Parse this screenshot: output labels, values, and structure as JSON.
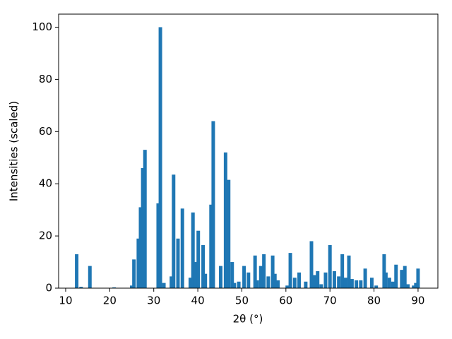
{
  "chart_data": {
    "type": "bar",
    "xlabel": "2θ (°)",
    "ylabel": "Intensities (scaled)",
    "color": "#1f77b4",
    "x": [
      12.5,
      13.5,
      15.5,
      21,
      25,
      25.5,
      26.5,
      27,
      27.5,
      28,
      31,
      31.5,
      32.3,
      34,
      34.5,
      35.5,
      36.5,
      38.3,
      38.9,
      39.5,
      40.1,
      41.2,
      41.7,
      43,
      43.5,
      45.2,
      46.3,
      47,
      47.8,
      48.3,
      49.3,
      50.5,
      51.5,
      53,
      53.5,
      54.3,
      55,
      56,
      57,
      57.5,
      58.2,
      60.3,
      61,
      62,
      63,
      64.5,
      65.8,
      66.5,
      67.2,
      68,
      69,
      70,
      71,
      72,
      72.8,
      73.5,
      74.3,
      75,
      76,
      77,
      78,
      79.5,
      80.5,
      82.3,
      82.7,
      83.5,
      84.3,
      85,
      86.3,
      87,
      87.7,
      89,
      89.5,
      90
    ],
    "values": [
      13,
      0.5,
      8.5,
      0.3,
      1,
      11,
      19,
      31,
      46,
      53,
      32.5,
      100,
      2,
      4.5,
      43.5,
      19,
      30.5,
      4,
      29,
      10,
      22,
      16.5,
      5.5,
      32,
      64,
      8.5,
      52,
      41.5,
      10,
      2,
      2.5,
      8.5,
      6,
      12.5,
      3,
      8.5,
      13,
      4.5,
      12.5,
      5.5,
      3,
      1,
      13.5,
      4,
      6,
      2.5,
      18,
      5,
      6.5,
      1.5,
      6,
      16.5,
      6.5,
      4.5,
      13,
      4,
      12.5,
      3.5,
      3,
      3,
      7.5,
      4,
      1,
      13,
      6,
      4,
      2.5,
      9,
      7,
      8.5,
      1.5,
      1,
      2,
      7.5
    ],
    "xlim": [
      8.4,
      94.5
    ],
    "xticks": [
      10,
      20,
      30,
      40,
      50,
      60,
      70,
      80,
      90
    ],
    "ylim": [
      0,
      105
    ],
    "yticks": [
      0,
      20,
      40,
      60,
      80,
      100
    ],
    "grid": false
  }
}
